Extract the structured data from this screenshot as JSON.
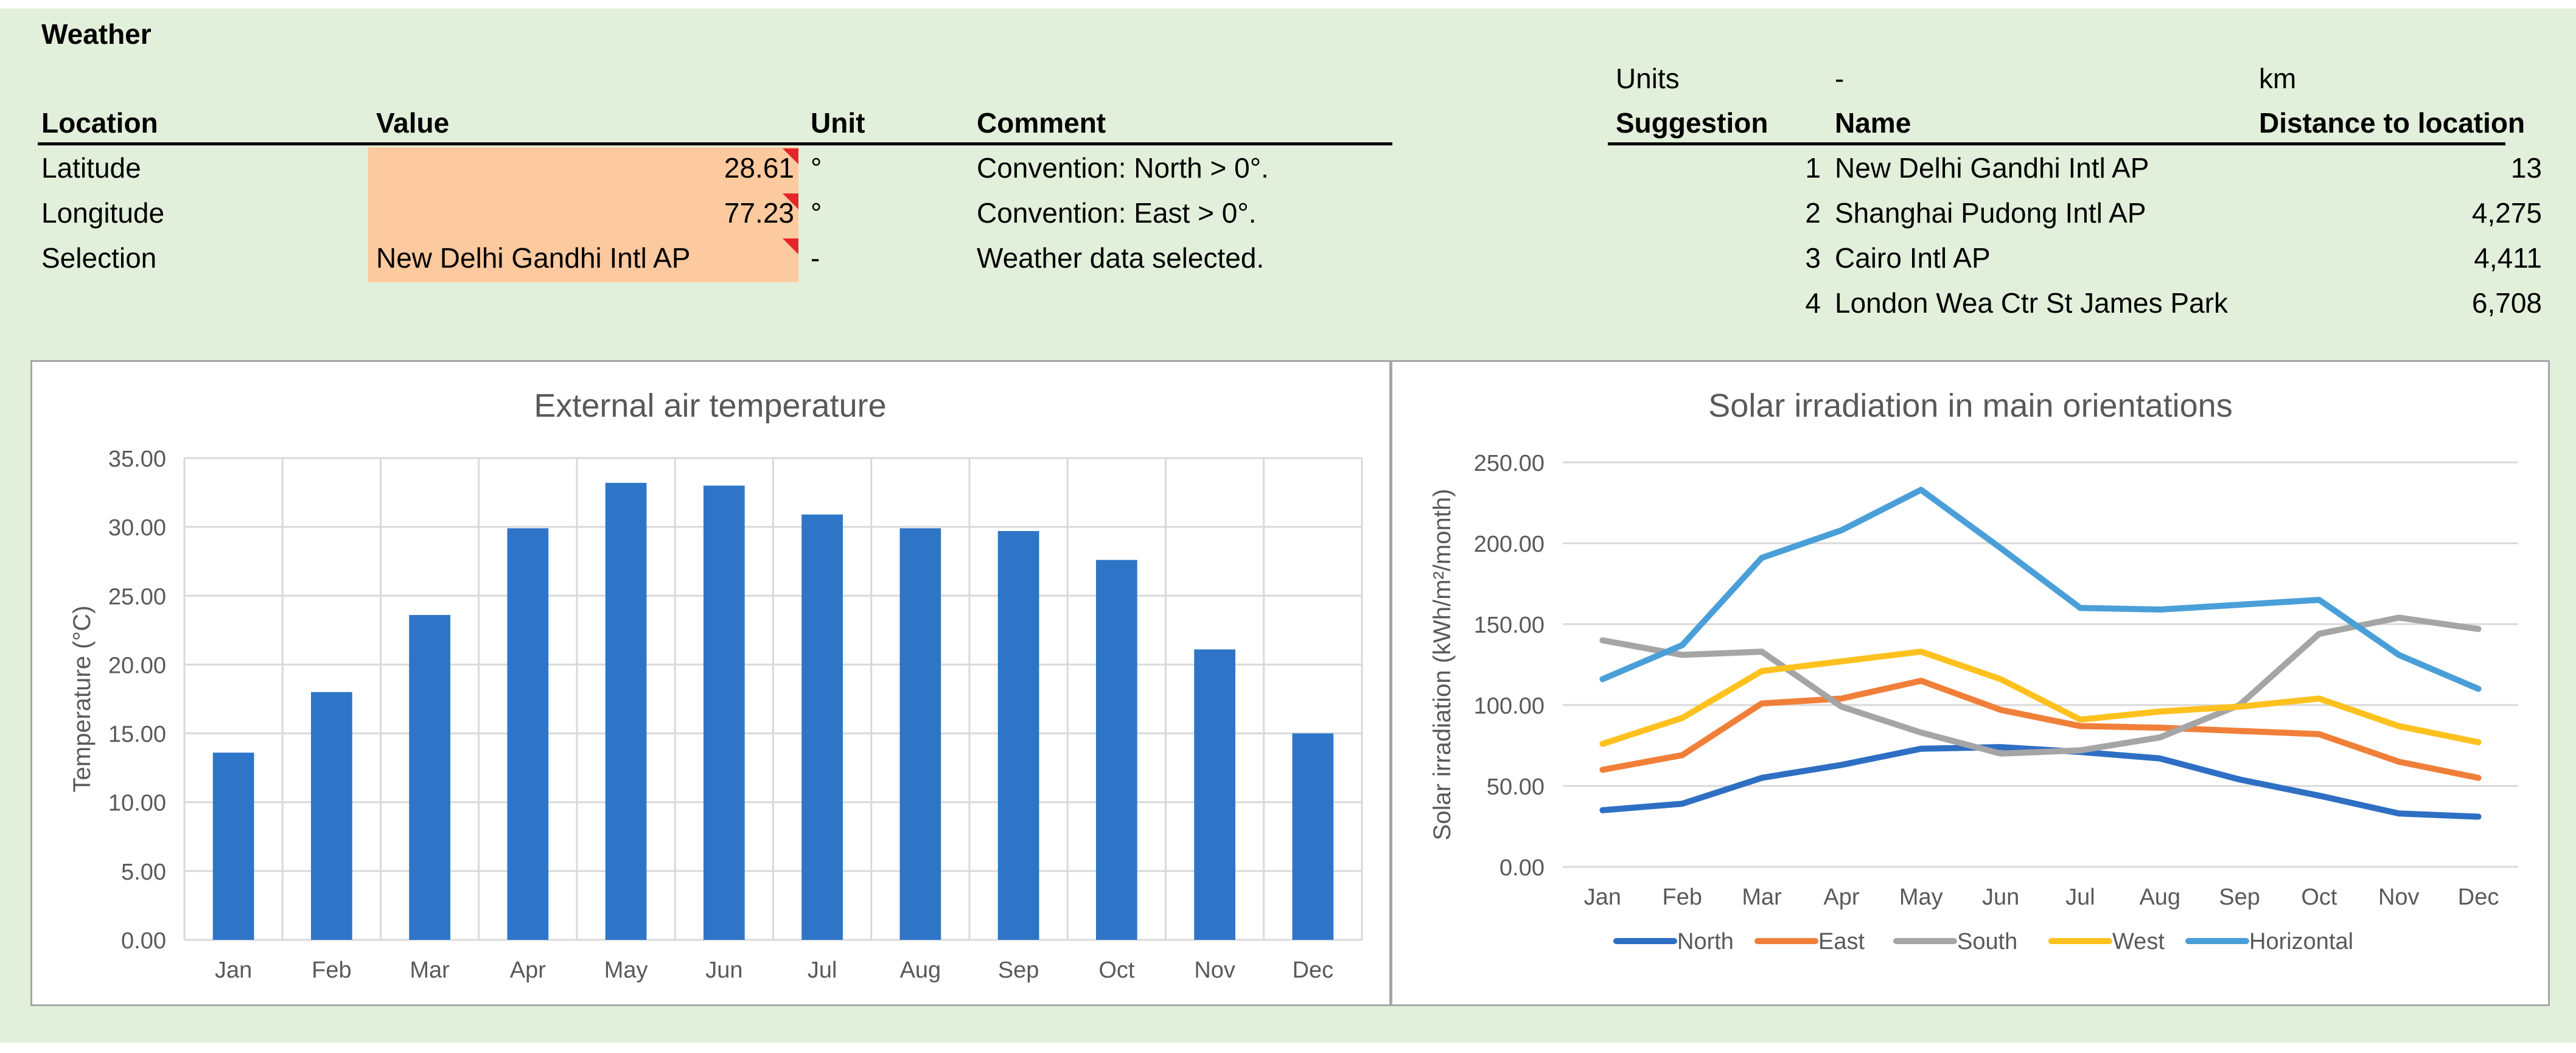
{
  "weather": {
    "title": "Weather",
    "headers": {
      "location": "Location",
      "value": "Value",
      "unit": "Unit",
      "comment": "Comment"
    },
    "rows": [
      {
        "label": "Latitude",
        "value": "28.61",
        "unit": "°",
        "comment": "Convention: North > 0°."
      },
      {
        "label": "Longitude",
        "value": "77.23",
        "unit": "°",
        "comment": "Convention: East > 0°."
      },
      {
        "label": "Selection",
        "value": "New Delhi Gandhi Intl AP",
        "unit": "-",
        "comment": "Weather data selected."
      }
    ]
  },
  "suggestions": {
    "units_label": "Units",
    "units_name": "-",
    "units_distance": "km",
    "headers": {
      "suggestion": "Suggestion",
      "name": "Name",
      "distance": "Distance to location"
    },
    "rows": [
      {
        "n": "1",
        "name": "New Delhi Gandhi Intl AP",
        "distance": "13"
      },
      {
        "n": "2",
        "name": "Shanghai Pudong Intl AP",
        "distance": "4,275"
      },
      {
        "n": "3",
        "name": "Cairo Intl AP",
        "distance": "4,411"
      },
      {
        "n": "4",
        "name": "London Wea Ctr St James Park",
        "distance": "6,708"
      }
    ]
  },
  "colors": {
    "bar": "#2e75c8",
    "north": "#2e6fc4",
    "east": "#f07f3a",
    "south": "#a5a5a5",
    "west": "#ffc11e",
    "horizontal": "#4a9fd8"
  },
  "chart_data": [
    {
      "type": "bar",
      "title": "External air temperature",
      "xlabel": "",
      "ylabel": "Temperature (°C)",
      "categories": [
        "Jan",
        "Feb",
        "Mar",
        "Apr",
        "May",
        "Jun",
        "Jul",
        "Aug",
        "Sep",
        "Oct",
        "Nov",
        "Dec"
      ],
      "values": [
        13.6,
        18.0,
        23.6,
        29.9,
        33.2,
        33.0,
        30.9,
        29.9,
        29.7,
        27.6,
        21.1,
        15.0
      ],
      "ylim": [
        0,
        35
      ],
      "yticks": [
        "0.00",
        "5.00",
        "10.00",
        "15.00",
        "20.00",
        "25.00",
        "30.00",
        "35.00"
      ],
      "grid": true
    },
    {
      "type": "line",
      "title": "Solar irradiation in main orientations",
      "xlabel": "",
      "ylabel": "Solar irradiation (kWh/m²/month)",
      "categories": [
        "Jan",
        "Feb",
        "Mar",
        "Apr",
        "May",
        "Jun",
        "Jul",
        "Aug",
        "Sep",
        "Oct",
        "Nov",
        "Dec"
      ],
      "ylim": [
        0,
        250
      ],
      "yticks": [
        "0.00",
        "50.00",
        "100.00",
        "150.00",
        "200.00",
        "250.00"
      ],
      "grid": true,
      "legend": "bottom",
      "series": [
        {
          "name": "North",
          "color_key": "north",
          "values": [
            35,
            39,
            55,
            63,
            73,
            74,
            71,
            67,
            54,
            44,
            33,
            31
          ]
        },
        {
          "name": "East",
          "color_key": "east",
          "values": [
            60,
            69,
            101,
            104,
            115,
            97,
            87,
            86,
            84,
            82,
            65,
            55
          ]
        },
        {
          "name": "South",
          "color_key": "south",
          "values": [
            140,
            131,
            133,
            99,
            83,
            70,
            72,
            80,
            100,
            144,
            154,
            147
          ]
        },
        {
          "name": "West",
          "color_key": "west",
          "values": [
            76,
            92,
            121,
            127,
            133,
            116,
            91,
            96,
            99,
            104,
            87,
            77
          ]
        },
        {
          "name": "Horizontal",
          "color_key": "horizontal",
          "values": [
            116,
            137,
            191,
            208,
            233,
            197,
            160,
            159,
            162,
            165,
            131,
            110
          ]
        }
      ]
    }
  ]
}
